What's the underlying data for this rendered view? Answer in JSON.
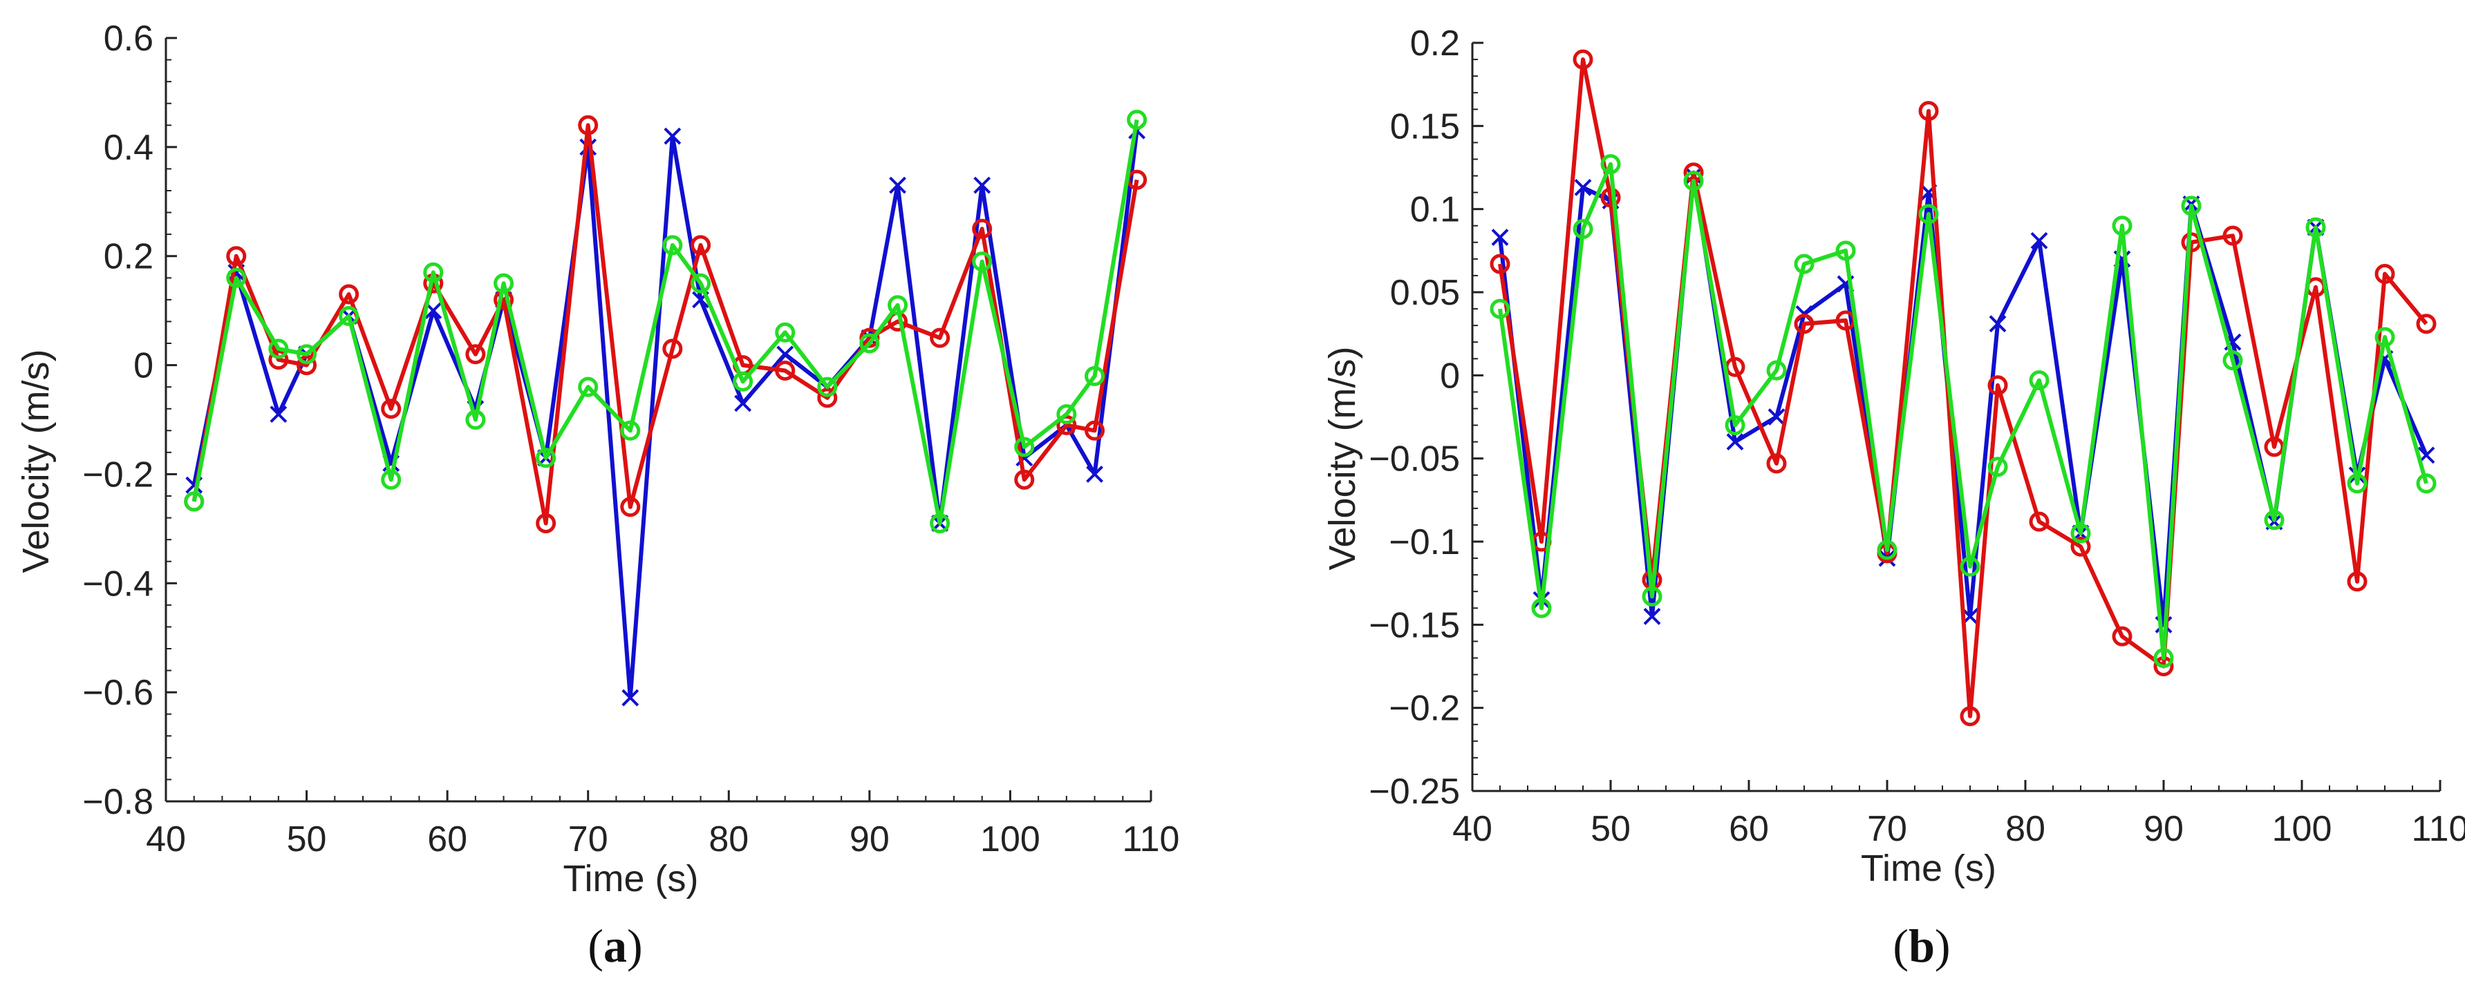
{
  "figure": {
    "caption_a_letter": "a",
    "caption_b_letter": "b"
  },
  "colors": {
    "blue": "#1010d0",
    "red": "#dd1111",
    "green": "#22dd22",
    "axis": "#222222"
  },
  "chart_data": [
    {
      "type": "line",
      "panel": "a",
      "xlabel": "Time (s)",
      "ylabel": "Velocity (m/s)",
      "xlim": [
        40,
        110
      ],
      "ylim": [
        -0.8,
        0.6
      ],
      "xticks": [
        40,
        50,
        60,
        70,
        80,
        90,
        100,
        110
      ],
      "xtick_labels": [
        "40",
        "50",
        "60",
        "70",
        "80",
        "90",
        "100",
        "110"
      ],
      "yticks": [
        0.6,
        0.4,
        0.2,
        0,
        -0.2,
        -0.4,
        -0.6,
        -0.8
      ],
      "ytick_labels": [
        "0.6",
        "0.4",
        "0.2",
        "0",
        "−0.2",
        "−0.4",
        "−0.6",
        "−0.8"
      ],
      "series": [
        {
          "name": "blue",
          "color": "#1010d0",
          "marker": "x",
          "x": [
            42,
            45,
            48,
            50,
            53,
            56,
            59,
            62,
            64,
            67,
            70,
            73,
            76,
            78,
            81,
            84,
            87,
            90,
            92,
            95,
            98,
            101,
            104,
            106,
            109
          ],
          "y": [
            -0.22,
            0.17,
            -0.09,
            0.02,
            0.09,
            -0.18,
            0.1,
            -0.08,
            0.12,
            -0.17,
            0.4,
            -0.61,
            0.42,
            0.12,
            -0.07,
            0.02,
            -0.04,
            0.05,
            0.33,
            -0.29,
            0.33,
            -0.17,
            -0.11,
            -0.2,
            0.43
          ]
        },
        {
          "name": "red",
          "color": "#dd1111",
          "marker": "o",
          "x": [
            42,
            45,
            48,
            50,
            53,
            56,
            59,
            62,
            64,
            67,
            70,
            73,
            76,
            78,
            81,
            84,
            87,
            90,
            92,
            95,
            98,
            101,
            104,
            106,
            109
          ],
          "y": [
            -0.25,
            0.2,
            0.01,
            0.0,
            0.13,
            -0.08,
            0.15,
            0.02,
            0.12,
            -0.29,
            0.44,
            -0.26,
            0.03,
            0.22,
            0.0,
            -0.01,
            -0.06,
            0.05,
            0.08,
            0.05,
            0.25,
            -0.21,
            -0.11,
            -0.12,
            0.34
          ]
        },
        {
          "name": "green",
          "color": "#22dd22",
          "marker": "o",
          "x": [
            42,
            45,
            48,
            50,
            53,
            56,
            59,
            62,
            64,
            67,
            70,
            73,
            76,
            78,
            81,
            84,
            87,
            90,
            92,
            95,
            98,
            101,
            104,
            106,
            109
          ],
          "y": [
            -0.25,
            0.16,
            0.03,
            0.02,
            0.09,
            -0.21,
            0.17,
            -0.1,
            0.15,
            -0.17,
            -0.04,
            -0.12,
            0.22,
            0.15,
            -0.03,
            0.06,
            -0.04,
            0.04,
            0.11,
            -0.29,
            0.19,
            -0.15,
            -0.09,
            -0.02,
            0.45
          ]
        }
      ]
    },
    {
      "type": "line",
      "panel": "b",
      "xlabel": "Time (s)",
      "ylabel": "Velocity (m/s)",
      "xlim": [
        40,
        110
      ],
      "ylim": [
        -0.25,
        0.2
      ],
      "xticks": [
        40,
        50,
        60,
        70,
        80,
        90,
        100,
        110
      ],
      "xtick_labels": [
        "40",
        "50",
        "60",
        "70",
        "80",
        "90",
        "100",
        "110"
      ],
      "yticks": [
        0.2,
        0.15,
        0.1,
        0.05,
        0,
        -0.05,
        -0.1,
        -0.15,
        -0.2,
        -0.25
      ],
      "ytick_labels": [
        "0.2",
        "0.15",
        "0.1",
        "0.05",
        "0",
        "−0.05",
        "−0.1",
        "−0.15",
        "−0.2",
        "−0.25"
      ],
      "series": [
        {
          "name": "blue",
          "color": "#1010d0",
          "marker": "x",
          "x": [
            42,
            45,
            48,
            50,
            53,
            56,
            59,
            62,
            64,
            67,
            70,
            73,
            76,
            78,
            81,
            84,
            87,
            90,
            92,
            95,
            98,
            101,
            104,
            106,
            109
          ],
          "y": [
            0.083,
            -0.135,
            0.113,
            0.105,
            -0.145,
            0.12,
            -0.04,
            -0.025,
            0.037,
            0.055,
            -0.11,
            0.11,
            -0.145,
            0.031,
            0.081,
            -0.095,
            0.07,
            -0.15,
            0.103,
            0.02,
            -0.088,
            0.089,
            -0.06,
            0.01,
            -0.048
          ]
        },
        {
          "name": "red",
          "color": "#dd1111",
          "marker": "o",
          "x": [
            42,
            45,
            48,
            50,
            53,
            56,
            59,
            62,
            64,
            67,
            70,
            73,
            76,
            78,
            81,
            84,
            87,
            90,
            92,
            95,
            98,
            101,
            104,
            106,
            109
          ],
          "y": [
            0.067,
            -0.1,
            0.19,
            0.107,
            -0.123,
            0.122,
            0.005,
            -0.053,
            0.031,
            0.033,
            -0.107,
            0.159,
            -0.205,
            -0.006,
            -0.088,
            -0.103,
            -0.157,
            -0.175,
            0.08,
            0.084,
            -0.043,
            0.053,
            -0.124,
            0.061,
            0.031
          ]
        },
        {
          "name": "green",
          "color": "#22dd22",
          "marker": "o",
          "x": [
            42,
            45,
            48,
            50,
            53,
            56,
            59,
            62,
            64,
            67,
            70,
            73,
            76,
            78,
            81,
            84,
            87,
            90,
            92,
            95,
            98,
            101,
            104,
            106,
            109
          ],
          "y": [
            0.04,
            -0.14,
            0.088,
            0.127,
            -0.133,
            0.117,
            -0.03,
            0.003,
            0.067,
            0.075,
            -0.105,
            0.097,
            -0.115,
            -0.055,
            -0.003,
            -0.095,
            0.09,
            -0.17,
            0.102,
            0.009,
            -0.087,
            0.089,
            -0.065,
            0.023,
            -0.065
          ]
        }
      ]
    }
  ]
}
